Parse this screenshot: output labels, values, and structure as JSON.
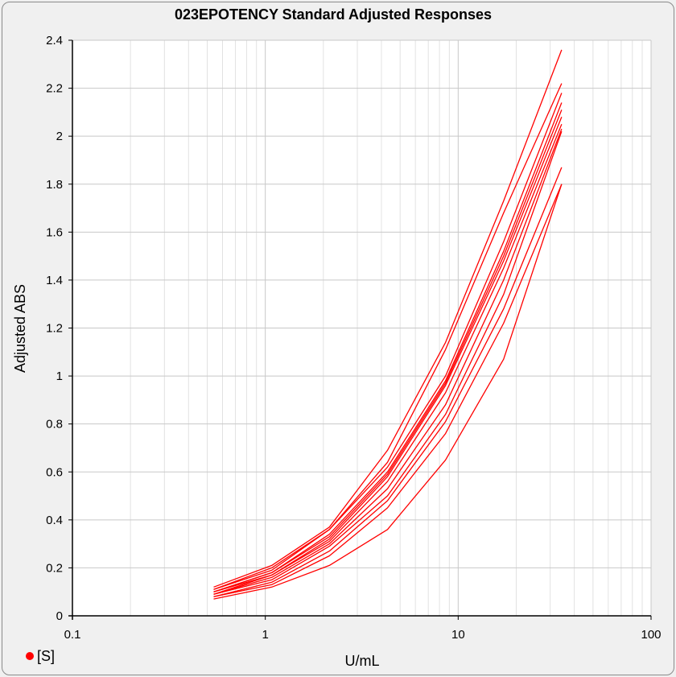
{
  "legend": {
    "label": "[S]"
  },
  "colors": {
    "series": "#ff0000",
    "grid_major": "#c8c8c8",
    "grid_minor": "#e2e2e2"
  },
  "chart_data": {
    "type": "line",
    "title": "023EPOTENCY Standard Adjusted Responses",
    "xlabel": "U/mL",
    "ylabel": "Adjusted ABS",
    "x_scale": "log",
    "xlim": [
      0.1,
      100
    ],
    "ylim": [
      0,
      2.4
    ],
    "x_ticks": [
      "0.1",
      "1",
      "10",
      "100"
    ],
    "y_ticks": [
      "0",
      "0.2",
      "0.4",
      "0.6",
      "0.8",
      "1",
      "1.2",
      "1.4",
      "1.6",
      "1.8",
      "2",
      "2.2",
      "2.4"
    ],
    "grid": true,
    "legend_position": "bottom-left",
    "x": [
      0.54,
      1.08,
      2.15,
      4.3,
      8.6,
      17.2,
      34.4
    ],
    "series": [
      {
        "values": [
          0.12,
          0.21,
          0.37,
          0.69,
          1.14,
          1.73,
          2.36
        ]
      },
      {
        "values": [
          0.11,
          0.2,
          0.36,
          0.64,
          1.11,
          1.68,
          2.22
        ]
      },
      {
        "values": [
          0.11,
          0.19,
          0.36,
          0.62,
          1.0,
          1.56,
          2.18
        ]
      },
      {
        "values": [
          0.1,
          0.18,
          0.34,
          0.6,
          0.98,
          1.52,
          2.14
        ]
      },
      {
        "values": [
          0.1,
          0.18,
          0.33,
          0.59,
          0.97,
          1.5,
          2.11
        ]
      },
      {
        "values": [
          0.1,
          0.17,
          0.32,
          0.58,
          0.96,
          1.48,
          2.08
        ]
      },
      {
        "values": [
          0.09,
          0.17,
          0.31,
          0.56,
          0.93,
          1.45,
          2.05
        ]
      },
      {
        "values": [
          0.09,
          0.16,
          0.3,
          0.53,
          0.88,
          1.4,
          2.03
        ]
      },
      {
        "values": [
          0.09,
          0.15,
          0.29,
          0.5,
          0.84,
          1.34,
          2.02
        ]
      },
      {
        "values": [
          0.08,
          0.14,
          0.27,
          0.48,
          0.81,
          1.28,
          1.87
        ]
      },
      {
        "values": [
          0.08,
          0.13,
          0.25,
          0.45,
          0.76,
          1.22,
          1.8
        ]
      },
      {
        "values": [
          0.07,
          0.12,
          0.21,
          0.36,
          0.65,
          1.07,
          1.8
        ]
      }
    ]
  }
}
